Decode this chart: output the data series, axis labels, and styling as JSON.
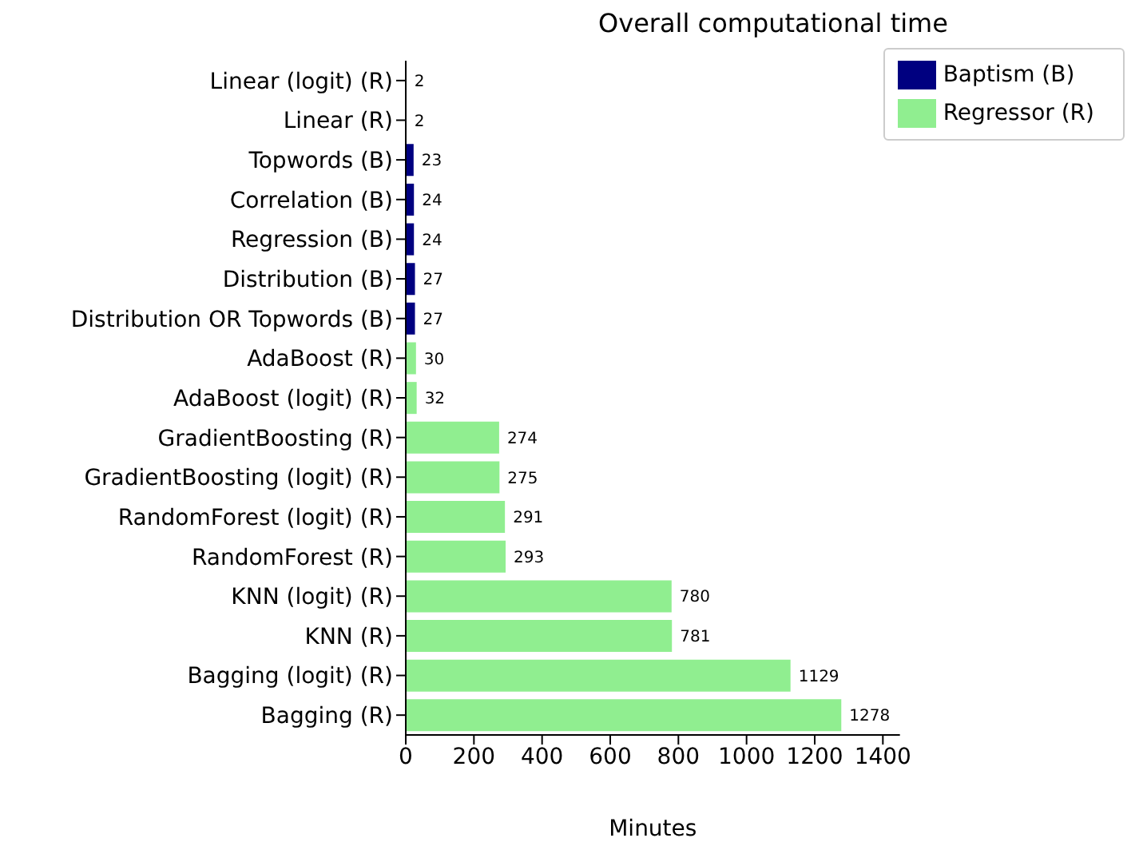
{
  "chart_data": {
    "type": "bar",
    "orientation": "horizontal",
    "title": "Overall computational time",
    "xlabel": "Minutes",
    "categories": [
      "Linear (logit) (R)",
      "Linear (R)",
      "Topwords (B)",
      "Correlation (B)",
      "Regression (B)",
      "Distribution (B)",
      "Distribution OR Topwords (B)",
      "AdaBoost (R)",
      "AdaBoost (logit) (R)",
      "GradientBoosting (R)",
      "GradientBoosting (logit) (R)",
      "RandomForest (logit) (R)",
      "RandomForest (R)",
      "KNN (logit) (R)",
      "KNN (R)",
      "Bagging (logit) (R)",
      "Bagging (R)"
    ],
    "series": [
      {
        "name": "Baptism (B)",
        "color": "#000080",
        "values": [
          null,
          null,
          23,
          24,
          24,
          27,
          27,
          null,
          null,
          null,
          null,
          null,
          null,
          null,
          null,
          null,
          null
        ]
      },
      {
        "name": "Regressor (R)",
        "color": "#90ee90",
        "values": [
          2,
          2,
          null,
          null,
          null,
          null,
          null,
          30,
          32,
          274,
          275,
          291,
          293,
          780,
          781,
          1129,
          1278
        ]
      }
    ],
    "xlim": [
      0,
      1450
    ],
    "xticks": [
      0,
      200,
      400,
      600,
      800,
      1000,
      1200,
      1400
    ],
    "data_labels": true,
    "legend": "top right",
    "grid": false
  }
}
